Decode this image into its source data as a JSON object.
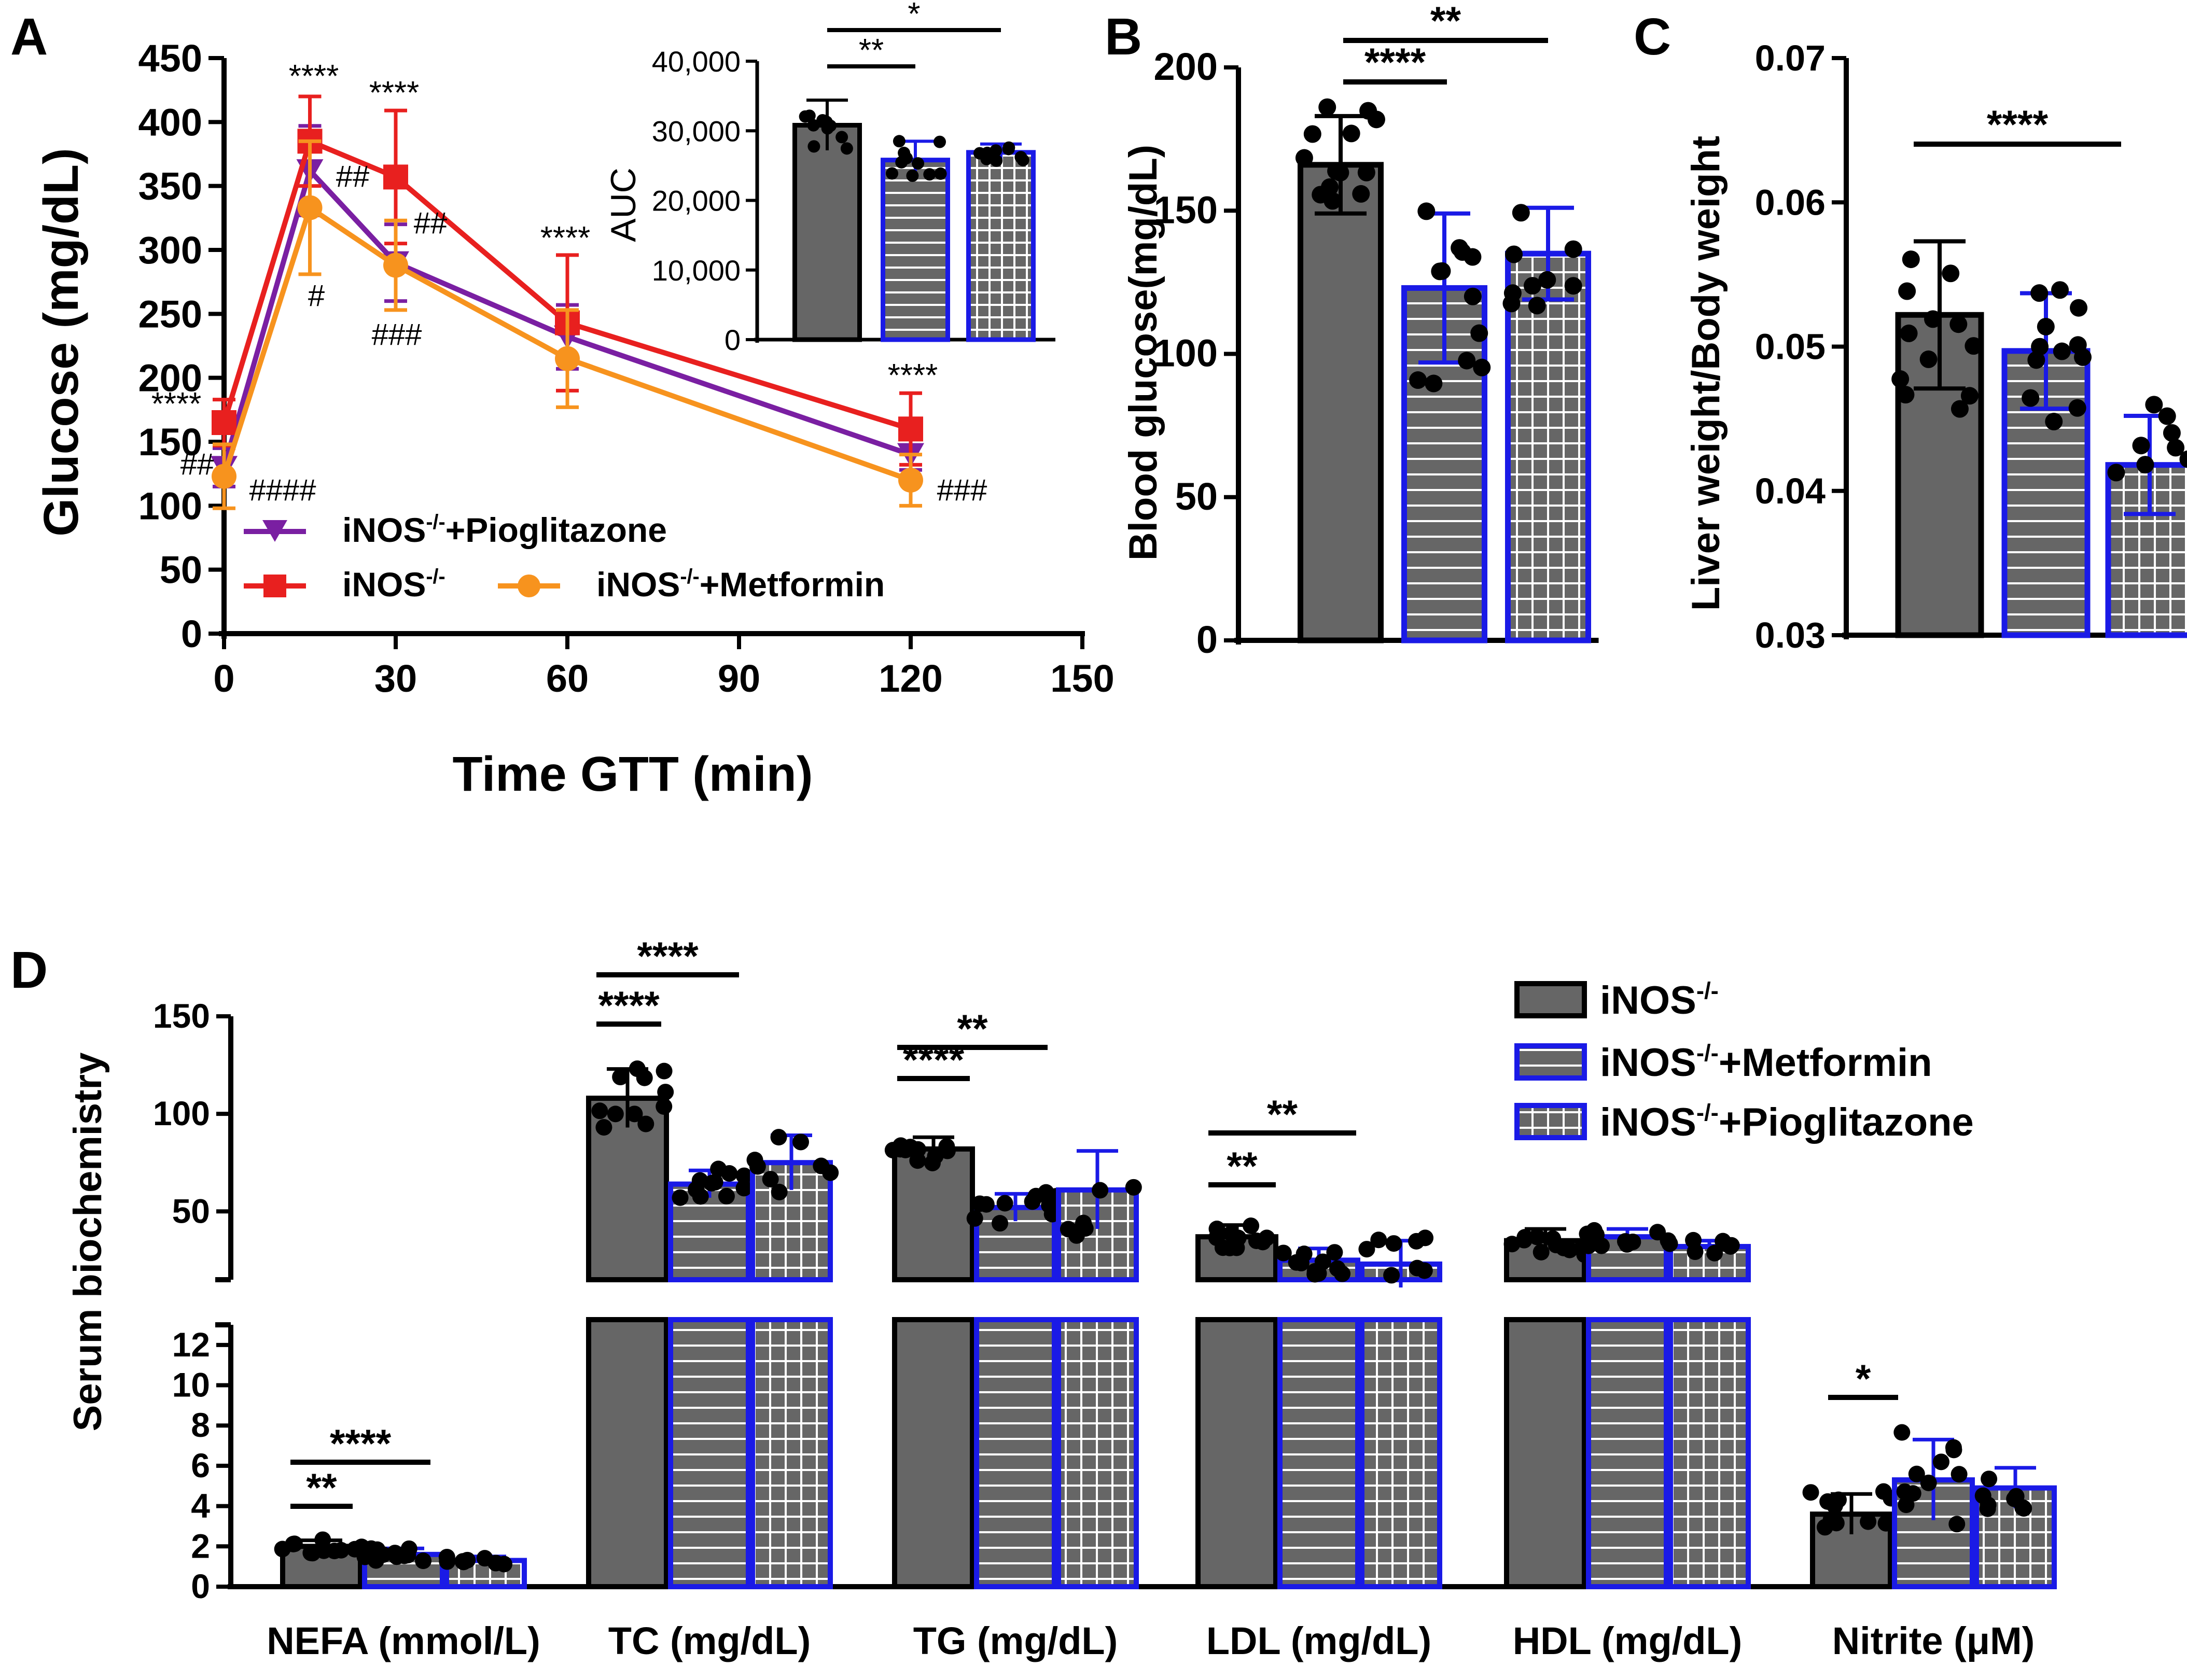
{
  "figure": {
    "panel_labels": [
      "A",
      "B",
      "C",
      "D"
    ],
    "colors": {
      "bar_fill": "#666666",
      "blue": "#1a1ae6",
      "red": "#e8201f",
      "purple": "#7a1fa2",
      "orange": "#f7931e",
      "black": "#000000",
      "white": "#ffffff"
    }
  },
  "chart_data": [
    {
      "id": "A",
      "type": "line",
      "xlabel": "Time GTT (min)",
      "ylabel": "Glucose (mg/dL)",
      "xlim": [
        0,
        150
      ],
      "ylim": [
        0,
        450
      ],
      "xticks": [
        "0",
        "30",
        "60",
        "90",
        "120",
        "150"
      ],
      "yticks": [
        "0",
        "50",
        "100",
        "150",
        "200",
        "250",
        "300",
        "350",
        "400",
        "450"
      ],
      "x": [
        0,
        15,
        30,
        60,
        120
      ],
      "series": [
        {
          "name": "iNOS-/-+Pioglitazone",
          "base": "iNOS",
          "sup": "-/-",
          "rest": "+Pioglitazone",
          "color": "#7a1fa2",
          "marker": "triangle-down",
          "values": [
            130,
            362,
            290,
            232,
            140
          ],
          "err": [
            15,
            35,
            30,
            25,
            12
          ]
        },
        {
          "name": "iNOS-/-",
          "base": "iNOS",
          "sup": "-/-",
          "rest": "",
          "color": "#e8201f",
          "marker": "square",
          "values": [
            165,
            385,
            357,
            243,
            160
          ],
          "err": [
            18,
            35,
            52,
            53,
            28
          ]
        },
        {
          "name": "iNOS-/-+Metformin",
          "base": "iNOS",
          "sup": "-/-",
          "rest": "+Metformin",
          "color": "#f7931e",
          "marker": "circle",
          "values": [
            123,
            333,
            288,
            215,
            120
          ],
          "err": [
            25,
            52,
            35,
            38,
            20
          ]
        }
      ],
      "annotations": {
        "stars": [
          "****",
          "****",
          "****",
          "****",
          "****"
        ],
        "hashes": [
          "##",
          "####",
          "##",
          "#",
          "##",
          "###",
          "###"
        ]
      },
      "inset": {
        "type": "bar",
        "ylabel": "AUC",
        "ylim": [
          0,
          40000
        ],
        "yticks": [
          "0",
          "10,000",
          "20,000",
          "30,000",
          "40,000"
        ],
        "values": [
          30800,
          25800,
          26900
        ],
        "err": [
          3600,
          2700,
          1200
        ],
        "brackets": [
          "**",
          "*"
        ]
      }
    },
    {
      "id": "B",
      "type": "bar",
      "ylabel": "Blood glucose(mg/dL)",
      "ylim": [
        0,
        200
      ],
      "yticks": [
        "0",
        "50",
        "100",
        "150",
        "200"
      ],
      "values": [
        166,
        123,
        135
      ],
      "err": [
        17,
        26,
        16
      ],
      "brackets": [
        "****",
        "**"
      ]
    },
    {
      "id": "C",
      "type": "bar",
      "ylabel": "Liver weight/Body weight",
      "ylim": [
        0.03,
        0.07
      ],
      "yticks": [
        "0.03",
        "0.04",
        "0.05",
        "0.06",
        "0.07"
      ],
      "values": [
        0.0522,
        0.0497,
        0.0418
      ],
      "err": [
        0.0051,
        0.004,
        0.0034
      ],
      "brackets": [
        "****"
      ]
    },
    {
      "id": "D",
      "type": "bar",
      "ylabel": "Serum biochemistry",
      "upper_ylim": [
        15,
        150
      ],
      "upper_yticks": [
        "50",
        "100",
        "150"
      ],
      "lower_ylim": [
        0,
        13
      ],
      "lower_yticks": [
        "0",
        "2",
        "4",
        "6",
        "8",
        "10",
        "12"
      ],
      "categories": [
        "NEFA (mmol/L)",
        "TC (mg/dL)",
        "TG (mg/dL)",
        "LDL (mg/dL)",
        "HDL (mg/dL)",
        "Nitrite (μM)"
      ],
      "legend": [
        {
          "base": "iNOS",
          "sup": "-/-",
          "rest": ""
        },
        {
          "base": "iNOS",
          "sup": "-/-",
          "rest": "+Metformin"
        },
        {
          "base": "iNOS",
          "sup": "-/-",
          "rest": "+Pioglitazone"
        }
      ],
      "series": [
        {
          "name": "iNOS-/-",
          "values": [
            2.0,
            108,
            82,
            37,
            35,
            3.6
          ],
          "err": [
            0.3,
            15,
            6,
            6,
            6,
            1.0
          ]
        },
        {
          "name": "iNOS-/-+Metformin",
          "values": [
            1.6,
            64,
            52,
            25,
            37,
            5.3
          ],
          "err": [
            0.3,
            7,
            7,
            6,
            4,
            2.0
          ]
        },
        {
          "name": "iNOS-/-+Pioglitazone",
          "values": [
            1.3,
            75,
            61,
            23,
            32,
            4.9
          ],
          "err": [
            0.2,
            14,
            20,
            12,
            3,
            1.0
          ]
        }
      ],
      "brackets": [
        {
          "category": "NEFA (mmol/L)",
          "labels": [
            "**",
            "****"
          ]
        },
        {
          "category": "TC (mg/dL)",
          "labels": [
            "****",
            "****"
          ]
        },
        {
          "category": "TG (mg/dL)",
          "labels": [
            "****",
            "**"
          ]
        },
        {
          "category": "LDL (mg/dL)",
          "labels": [
            "**",
            "**"
          ]
        },
        {
          "category": "Nitrite (μM)",
          "labels": [
            "*"
          ]
        }
      ]
    }
  ]
}
